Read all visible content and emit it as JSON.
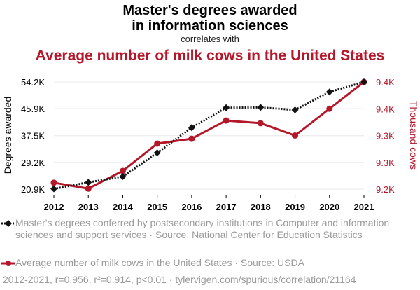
{
  "header": {
    "title_line1": "Master's degrees awarded",
    "title_line2": "in information sciences",
    "correlates": "correlates with",
    "title_secondary": "Average number of milk cows in the United States"
  },
  "colors": {
    "series1": "#111111",
    "series2": "#b5172a",
    "grid": "#e8e8e8",
    "legend_text": "#9a9a9a"
  },
  "chart_data": {
    "type": "line",
    "x": [
      2012,
      2013,
      2014,
      2015,
      2016,
      2017,
      2018,
      2019,
      2020,
      2021
    ],
    "xticks": [
      "2012",
      "2013",
      "2014",
      "2015",
      "2016",
      "2017",
      "2018",
      "2019",
      "2020",
      "2021"
    ],
    "y_left": {
      "label": "Degrees awarded",
      "ticks": [
        "54.2K",
        "45.9K",
        "37.5K",
        "29.2K",
        "20.9K"
      ],
      "tick_values": [
        54200,
        45900,
        37500,
        29200,
        20900
      ],
      "range": [
        20900,
        54200
      ]
    },
    "y_right": {
      "label": "Thousand cows",
      "ticks": [
        "9.4K",
        "9.4K",
        "9.3K",
        "9.3K",
        "9.2K"
      ],
      "tick_values": [
        9400,
        9350,
        9300,
        9250,
        9200
      ],
      "range": [
        9200,
        9400
      ]
    },
    "series": [
      {
        "name": "Master's degrees conferred by postsecondary institutions in Computer and information sciences and support services · Source: National Center for Education Statistics",
        "axis": "left",
        "style": "dotted",
        "marker": "diamond",
        "values": [
          21000,
          23000,
          24800,
          32200,
          40000,
          46200,
          46300,
          45500,
          51100,
          54200
        ]
      },
      {
        "name": "Average number of milk cows in the United States · Source: USDA",
        "axis": "right",
        "style": "solid",
        "marker": "circle",
        "values": [
          9212,
          9201,
          9234,
          9285,
          9294,
          9328,
          9323,
          9300,
          9350,
          9400
        ]
      }
    ],
    "grid": true
  },
  "legend": {
    "series1_text": "Master's degrees conferred by postsecondary institutions in Computer and information sciences and support services · Source: National Center for Education Statistics",
    "series2_text": "Average number of milk cows in the United States · Source: USDA"
  },
  "footer": "2012-2021, r=0.956, r²=0.914, p<0.01 · tylervigen.com/spurious/correlation/21164"
}
